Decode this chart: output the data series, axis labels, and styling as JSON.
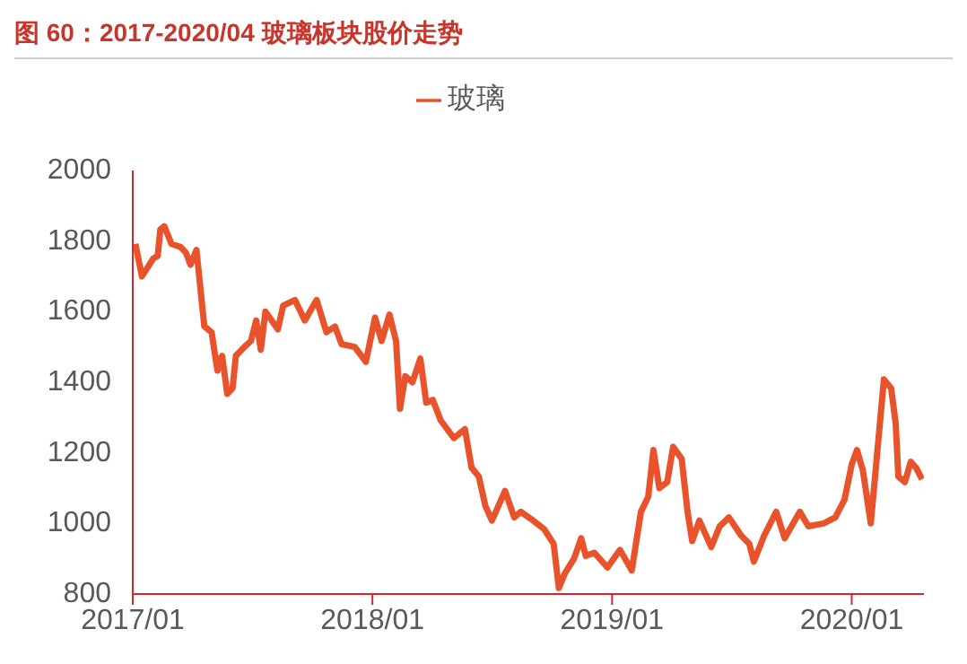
{
  "chart_data": {
    "type": "line",
    "title": "图 60：2017-2020/04 玻璃板块股价走势",
    "x": [
      "2017-01-05",
      "2017-01-15",
      "2017-02-01",
      "2017-02-08",
      "2017-02-12",
      "2017-02-18",
      "2017-03-01",
      "2017-03-15",
      "2017-03-23",
      "2017-03-30",
      "2017-04-08",
      "2017-04-20",
      "2017-05-01",
      "2017-05-10",
      "2017-05-17",
      "2017-05-25",
      "2017-06-02",
      "2017-06-07",
      "2017-06-20",
      "2017-06-30",
      "2017-07-08",
      "2017-07-15",
      "2017-07-22",
      "2017-08-10",
      "2017-08-18",
      "2017-09-05",
      "2017-09-20",
      "2017-10-08",
      "2017-10-23",
      "2017-11-05",
      "2017-11-15",
      "2017-12-05",
      "2017-12-22",
      "2018-01-05",
      "2018-01-15",
      "2018-01-27",
      "2018-02-06",
      "2018-02-12",
      "2018-02-20",
      "2018-03-03",
      "2018-03-15",
      "2018-03-24",
      "2018-04-03",
      "2018-04-15",
      "2018-05-05",
      "2018-05-22",
      "2018-06-01",
      "2018-06-12",
      "2018-06-22",
      "2018-07-02",
      "2018-07-22",
      "2018-08-05",
      "2018-08-15",
      "2018-09-03",
      "2018-09-20",
      "2018-10-04",
      "2018-10-12",
      "2018-10-21",
      "2018-11-04",
      "2018-11-15",
      "2018-11-22",
      "2018-12-05",
      "2018-12-25",
      "2019-01-13",
      "2019-01-31",
      "2019-02-14",
      "2019-02-25",
      "2019-03-05",
      "2019-03-14",
      "2019-03-26",
      "2019-04-04",
      "2019-04-17",
      "2019-04-26",
      "2019-05-03",
      "2019-05-14",
      "2019-06-01",
      "2019-06-14",
      "2019-06-28",
      "2019-07-16",
      "2019-07-29",
      "2019-08-05",
      "2019-08-21",
      "2019-09-08",
      "2019-09-21",
      "2019-10-14",
      "2019-10-27",
      "2019-11-19",
      "2019-12-07",
      "2019-12-21",
      "2020-01-01",
      "2020-01-09",
      "2020-01-18",
      "2020-01-30",
      "2020-02-08",
      "2020-02-19",
      "2020-03-01",
      "2020-03-08",
      "2020-03-12",
      "2020-03-22",
      "2020-03-31",
      "2020-04-08",
      "2020-04-17"
    ],
    "series": [
      {
        "name": "玻璃",
        "color": "#e8532b",
        "values": [
          1792,
          1700,
          1750,
          1758,
          1833,
          1842,
          1792,
          1783,
          1767,
          1733,
          1775,
          1558,
          1542,
          1433,
          1475,
          1367,
          1383,
          1475,
          1500,
          1517,
          1575,
          1492,
          1600,
          1550,
          1617,
          1633,
          1575,
          1633,
          1542,
          1558,
          1508,
          1500,
          1458,
          1583,
          1517,
          1592,
          1517,
          1325,
          1417,
          1400,
          1467,
          1342,
          1350,
          1292,
          1242,
          1267,
          1158,
          1133,
          1050,
          1008,
          1092,
          1017,
          1033,
          1008,
          983,
          942,
          817,
          858,
          900,
          958,
          908,
          917,
          875,
          925,
          867,
          1033,
          1075,
          1208,
          1100,
          1117,
          1217,
          1183,
          1033,
          950,
          1008,
          933,
          992,
          1017,
          967,
          942,
          892,
          967,
          1033,
          958,
          1033,
          992,
          1000,
          1017,
          1067,
          1167,
          1208,
          1150,
          1000,
          1183,
          1408,
          1383,
          1283,
          1133,
          1117,
          1175,
          1158,
          1125
        ]
      }
    ],
    "xlim": [
      "2017-01-01",
      "2020-04-20"
    ],
    "xticks": [
      {
        "value": "2017-01-01",
        "label": "2017/01"
      },
      {
        "value": "2018-01-01",
        "label": "2018/01"
      },
      {
        "value": "2019-01-01",
        "label": "2019/01"
      },
      {
        "value": "2020-01-01",
        "label": "2020/01"
      }
    ],
    "ylim": [
      800,
      2000
    ],
    "yticks": [
      800,
      1000,
      1200,
      1400,
      1600,
      1800,
      2000
    ],
    "legend": "top",
    "grid": false
  }
}
